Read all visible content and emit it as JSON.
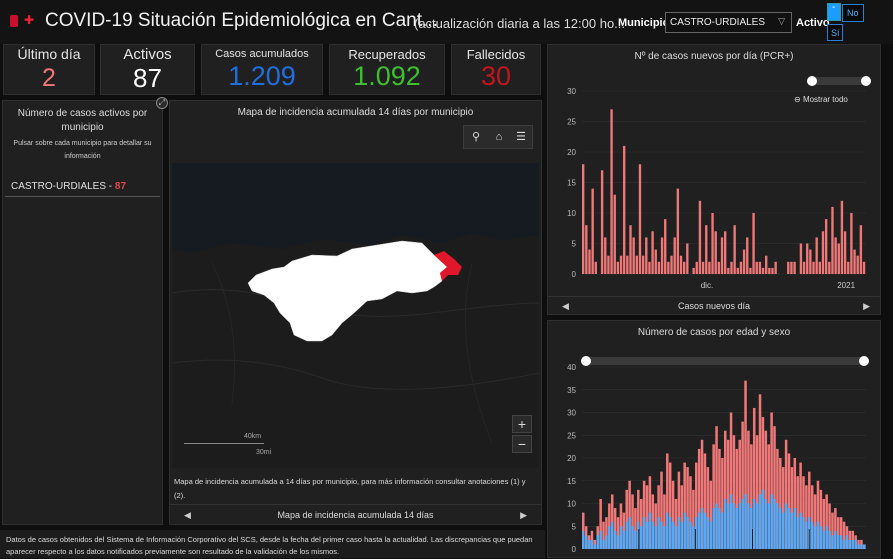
{
  "header": {
    "title": "COVID-19 Situación Epidemiológica en Cant...",
    "subtitle": "(actualización diaria a las 12:00 ho...",
    "municipio_label": "Municipio",
    "municipio_value": "CASTRO-URDIALES",
    "activo_label": "Activo",
    "toggle_dot": "-",
    "option_no": "No",
    "option_si": "Sí"
  },
  "kpis": [
    {
      "label": "Último día",
      "value": "2",
      "color": "#f07878"
    },
    {
      "label": "Activos",
      "value": "87",
      "color": "#ffffff"
    },
    {
      "label": "Casos acumulados",
      "value": "1.209",
      "color": "#1f6fe0"
    },
    {
      "label": "Recuperados",
      "value": "1.092",
      "color": "#3fbf2f"
    },
    {
      "label": "Fallecidos",
      "value": "30",
      "color": "#c0161c"
    }
  ],
  "sidebar": {
    "title": "Número de casos activos por municipio",
    "hint": "Pulsar sobre cada municipio para detallar su información",
    "item_name": "CASTRO-URDIALES",
    "item_sep": " - ",
    "item_value": "87"
  },
  "map": {
    "title": "Mapa de incidencia acumulada 14 días por municipio",
    "scale_km": "40km",
    "scale_mi": "30mi",
    "caption": "Mapa de incidencia acumulada a 14 días por municipio, para más información consultar anotaciones (1) y (2).",
    "footer": "Mapa de incidencia acumulada 14 días",
    "zoom_in": "+",
    "zoom_out": "−",
    "highlight_color": "#e0162b"
  },
  "chart_daily": {
    "title": "Nº de casos nuevos por día (PCR+)",
    "zoom_label": "Mostrar todo",
    "footer": "Casos nuevos día"
  },
  "chart_age": {
    "title": "Número de casos por edad y sexo"
  },
  "footnote": "Datos de casos obtenidos del Sistema de Información Corporativo del SCS, desde la fecha del primer caso hasta la actualidad. Las discrepancias que puedan aparecer respecto a los datos notificados previamente son resultado de la validación de los mismos.",
  "chart_data": [
    {
      "type": "bar",
      "title": "Nº de casos nuevos por día (PCR+)",
      "xlabel": "",
      "ylabel": "",
      "ylim": [
        0,
        30
      ],
      "yticks": [
        0,
        5,
        10,
        15,
        20,
        25,
        30
      ],
      "xtick_labels": [
        "dic.",
        "2021"
      ],
      "color": "#f07878",
      "values": [
        18,
        8,
        4,
        14,
        2,
        0,
        17,
        6,
        3,
        27,
        13,
        2,
        3,
        21,
        3,
        8,
        6,
        3,
        18,
        3,
        6,
        2,
        7,
        4,
        2,
        6,
        9,
        2,
        3,
        6,
        14,
        3,
        2,
        5,
        0,
        1,
        2,
        12,
        2,
        8,
        2,
        10,
        7,
        2,
        6,
        7,
        1,
        2,
        8,
        1,
        2,
        4,
        6,
        1,
        10,
        2,
        2,
        1,
        3,
        1,
        1,
        2,
        0,
        0,
        0,
        2,
        2,
        2,
        0,
        5,
        2,
        5,
        4,
        2,
        6,
        2,
        7,
        9,
        2,
        11,
        6,
        5,
        12,
        7,
        2,
        10,
        4,
        3,
        8,
        2
      ],
      "grid": true
    },
    {
      "type": "bar",
      "title": "Número de casos por edad y sexo",
      "ylim": [
        0,
        40
      ],
      "yticks": [
        0,
        5,
        10,
        15,
        20,
        25,
        30,
        35,
        40
      ],
      "series": [
        {
          "color": "#5aa9f5",
          "values": [
            4,
            3,
            2,
            2,
            1,
            3,
            4,
            2,
            3,
            5,
            6,
            4,
            3,
            5,
            4,
            6,
            7,
            5,
            4,
            6,
            5,
            7,
            6,
            8,
            6,
            5,
            7,
            6,
            5,
            8,
            7,
            6,
            5,
            7,
            6,
            8,
            7,
            6,
            5,
            7,
            8,
            9,
            8,
            7,
            6,
            9,
            10,
            9,
            8,
            11,
            10,
            12,
            10,
            9,
            10,
            11,
            12,
            10,
            9,
            11,
            10,
            12,
            13,
            11,
            10,
            12,
            11,
            10,
            9,
            8,
            10,
            9,
            8,
            9,
            7,
            8,
            7,
            6,
            7,
            6,
            5,
            6,
            5,
            4,
            5,
            4,
            3,
            4,
            3,
            3,
            2,
            3,
            2,
            2,
            2,
            1,
            1,
            1
          ]
        },
        {
          "color": "#f07878",
          "values": [
            8,
            5,
            3,
            4,
            2,
            5,
            11,
            6,
            7,
            10,
            12,
            9,
            7,
            10,
            8,
            13,
            15,
            12,
            9,
            13,
            11,
            15,
            14,
            16,
            12,
            10,
            14,
            17,
            12,
            21,
            19,
            15,
            11,
            17,
            14,
            19,
            18,
            16,
            13,
            19,
            22,
            24,
            21,
            18,
            15,
            23,
            27,
            22,
            20,
            26,
            24,
            30,
            25,
            22,
            24,
            28,
            37,
            26,
            23,
            31,
            25,
            34,
            29,
            26,
            23,
            30,
            27,
            22,
            20,
            18,
            24,
            21,
            18,
            20,
            16,
            19,
            16,
            14,
            17,
            14,
            12,
            15,
            13,
            11,
            12,
            10,
            8,
            9,
            7,
            7,
            6,
            5,
            4,
            4,
            3,
            2,
            2,
            1
          ]
        }
      ]
    }
  ]
}
